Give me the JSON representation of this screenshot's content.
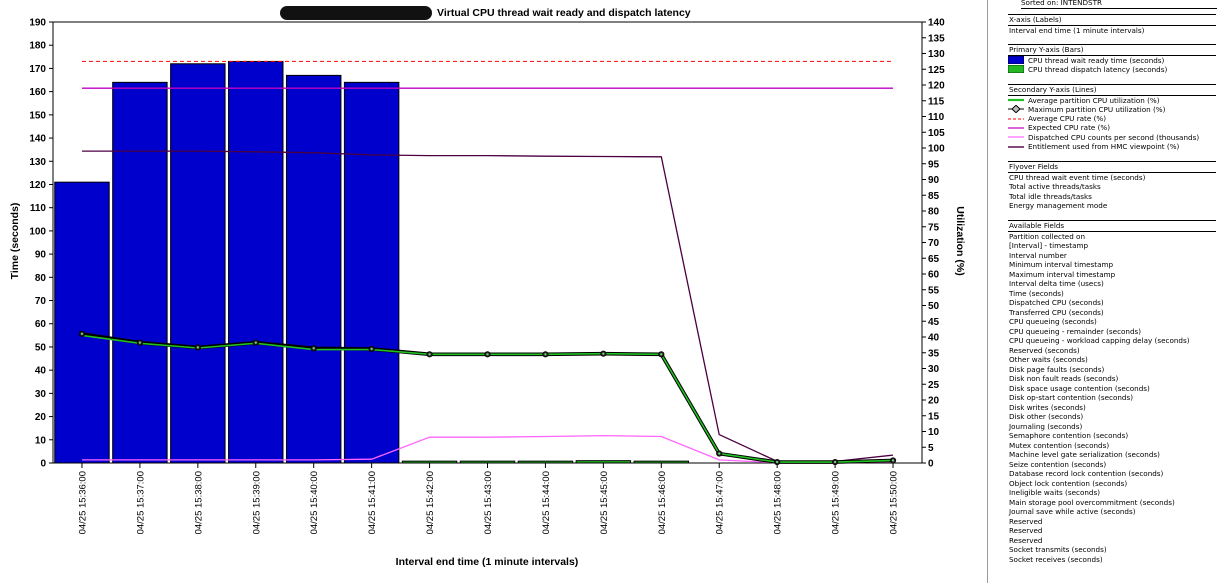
{
  "chart_data": {
    "type": "bar",
    "title_redacted": true,
    "title": "Virtual CPU thread wait ready and dispatch latency",
    "xlabel": "Interval end time (1 minute intervals)",
    "ylabel": "Time (seconds)",
    "y2label": "Utilization (%)",
    "ylim": [
      0,
      190
    ],
    "y2lim": [
      0,
      140
    ],
    "yticks": [
      0,
      10,
      20,
      30,
      40,
      50,
      60,
      70,
      80,
      90,
      100,
      110,
      120,
      130,
      140,
      150,
      160,
      170,
      180,
      190
    ],
    "y2ticks": [
      0,
      5,
      10,
      15,
      20,
      25,
      30,
      35,
      40,
      45,
      50,
      55,
      60,
      65,
      70,
      75,
      80,
      85,
      90,
      95,
      100,
      105,
      110,
      115,
      120,
      125,
      130,
      135,
      140
    ],
    "categories": [
      "04/25 15:36:00",
      "04/25 15:37:00",
      "04/25 15:38:00",
      "04/25 15:39:00",
      "04/25 15:40:00",
      "04/25 15:41:00",
      "04/25 15:42:00",
      "04/25 15:43:00",
      "04/25 15:44:00",
      "04/25 15:45:00",
      "04/25 15:46:00",
      "04/25 15:47:00",
      "04/25 15:48:00",
      "04/25 15:49:00",
      "04/25 15:50:00"
    ],
    "bar_series": [
      {
        "name": "CPU thread wait ready time (seconds)",
        "color": "#0000cc",
        "values": [
          121,
          164,
          172,
          173,
          167,
          164,
          0,
          0,
          0,
          0,
          0,
          0,
          0,
          0,
          0
        ]
      },
      {
        "name": "CPU thread dispatch latency (seconds)",
        "color": "#22b822",
        "values": [
          0,
          0,
          0,
          0,
          0,
          0,
          0.8,
          0.8,
          0.8,
          1.0,
          0.8,
          0,
          0,
          0,
          0
        ]
      }
    ],
    "line_series": [
      {
        "name": "Average partition CPU utilization (%)",
        "color": "#22c022",
        "axis": "secondary",
        "values": [
          40.5,
          38,
          36.5,
          38,
          36,
          36,
          34.5,
          34.5,
          34.5,
          34.7,
          34.5,
          3,
          0.3,
          0.3,
          0.8
        ]
      },
      {
        "name": "Maximum partition CPU utilization (%)",
        "color": "#000000",
        "axis": "secondary",
        "values": [
          41,
          38.2,
          36.7,
          38.2,
          36.4,
          36.2,
          34.5,
          34.5,
          34.5,
          34.7,
          34.5,
          3,
          0.3,
          0.3,
          0.8
        ]
      },
      {
        "name": "Average CPU rate (%)",
        "color": "#ff0000",
        "axis": "secondary",
        "dashed": true,
        "values": [
          127.5,
          127.5,
          127.5,
          127.5,
          127.5,
          127.5,
          127.5,
          127.5,
          127.5,
          127.5,
          127.5,
          127.5,
          127.5,
          127.5,
          127.5
        ]
      },
      {
        "name": "Expected CPU rate (%)",
        "color": "#c000c0",
        "axis": "secondary",
        "values": [
          119,
          119,
          119,
          119,
          119,
          119,
          119,
          119,
          119,
          119,
          119,
          119,
          119,
          119,
          119
        ]
      },
      {
        "name": "Dispatched CPU counts per second (thousands)",
        "color": "#ff66ff",
        "axis": "secondary",
        "values": [
          1,
          1,
          1,
          1,
          1,
          1.2,
          8.2,
          8.2,
          8.4,
          8.7,
          8.4,
          1,
          0.1,
          0.1,
          0.3
        ]
      },
      {
        "name": "Entitlement used from HMC viewpoint (%)",
        "color": "#4b0040",
        "axis": "secondary",
        "values": [
          99,
          99,
          99,
          98.8,
          98.5,
          97.8,
          97.6,
          97.6,
          97.4,
          97.3,
          97.2,
          9,
          0.5,
          0.5,
          2.5
        ]
      }
    ],
    "grid": false
  },
  "legend": {
    "sorted_on": "Sorted on: INTENDSTR",
    "xaxis_header": "X-axis (Labels)",
    "xaxis_item": "Interval end time (1 minute intervals)",
    "primary_header": "Primary Y-axis (Bars)",
    "primary_items": [
      "CPU thread wait ready time (seconds)",
      "CPU thread dispatch latency (seconds)"
    ],
    "secondary_header": "Secondary Y-axis (Lines)",
    "secondary_items": [
      "Average partition CPU utilization (%)",
      "Maximum partition CPU utilization (%)",
      "Average CPU rate (%)",
      "Expected CPU rate (%)",
      "Dispatched CPU counts per second (thousands)",
      "Entitlement used from HMC viewpoint (%)"
    ],
    "flyover_header": "Flyover Fields",
    "flyover_items": [
      "CPU thread wait event time (seconds)",
      "Total active threads/tasks",
      "Total idle threads/tasks",
      "Energy management mode"
    ],
    "available_header": "Available Fields",
    "available_items": [
      "Partition collected on",
      "[Interval] - timestamp",
      "Interval number",
      "Minimum interval timestamp",
      "Maximum interval timestamp",
      "Interval delta time (usecs)",
      "Time (seconds)",
      "Dispatched CPU (seconds)",
      "Transferred CPU (seconds)",
      "CPU queueing (seconds)",
      "CPU queueing - remainder (seconds)",
      "CPU queueing - workload capping delay (seconds)",
      "Reserved (seconds)",
      "Other waits (seconds)",
      "Disk page faults (seconds)",
      "Disk non fault reads (seconds)",
      "Disk space usage contention (seconds)",
      "Disk op-start contention (seconds)",
      "Disk writes (seconds)",
      "Disk other (seconds)",
      "Journaling (seconds)",
      "Semaphore contention (seconds)",
      "Mutex contention (seconds)",
      "Machine level gate serialization (seconds)",
      "Seize contention (seconds)",
      "Database record lock contention (seconds)",
      "Object lock contention (seconds)",
      "Ineligible waits (seconds)",
      "Main storage pool overcommitment (seconds)",
      "Journal save while active (seconds)",
      "Reserved",
      "Reserved",
      "Reserved",
      "Socket transmits (seconds)",
      "Socket receives (seconds)"
    ]
  }
}
